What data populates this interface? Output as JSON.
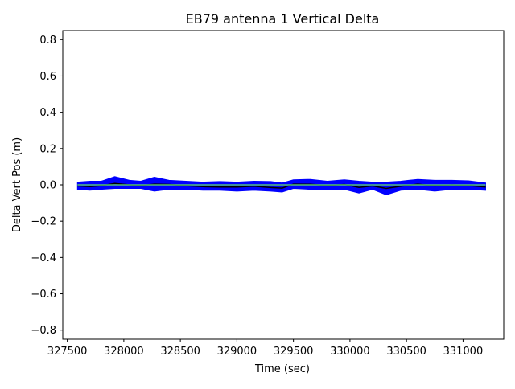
{
  "chart_data": {
    "type": "line",
    "title": "EB79 antenna 1 Vertical Delta",
    "xlabel": "Time (sec)",
    "ylabel": "Delta Vert Pos (m)",
    "xlim": [
      327460,
      331360
    ],
    "ylim": [
      -0.85,
      0.85
    ],
    "x_ticks": [
      {
        "value": 327500,
        "label": "327500"
      },
      {
        "value": 328000,
        "label": "328000"
      },
      {
        "value": 328500,
        "label": "328500"
      },
      {
        "value": 329000,
        "label": "329000"
      },
      {
        "value": 329500,
        "label": "329500"
      },
      {
        "value": 330000,
        "label": "330000"
      },
      {
        "value": 330500,
        "label": "330500"
      },
      {
        "value": 331000,
        "label": "331000"
      }
    ],
    "y_ticks": [
      {
        "value": 0.8,
        "label": "0.8"
      },
      {
        "value": 0.6,
        "label": "0.6"
      },
      {
        "value": 0.4,
        "label": "0.4"
      },
      {
        "value": 0.2,
        "label": "0.2"
      },
      {
        "value": 0.0,
        "label": "0.0"
      },
      {
        "value": -0.2,
        "label": "−0.2"
      },
      {
        "value": -0.4,
        "label": "−0.4"
      },
      {
        "value": -0.6,
        "label": "−0.6"
      },
      {
        "value": -0.8,
        "label": "−0.8"
      }
    ],
    "grid": false,
    "series": [
      {
        "color": "#0000ff",
        "style": "error-band",
        "x": [
          327590,
          327700,
          327800,
          327920,
          328050,
          328150,
          328270,
          328400,
          328550,
          328700,
          328850,
          329000,
          329150,
          329300,
          329400,
          329500,
          329650,
          329800,
          329950,
          330080,
          330200,
          330320,
          330450,
          330600,
          330750,
          330900,
          331050,
          331200
        ],
        "upper": [
          0.015,
          0.02,
          0.02,
          0.045,
          0.025,
          0.02,
          0.042,
          0.025,
          0.02,
          0.015,
          0.018,
          0.015,
          0.02,
          0.018,
          0.01,
          0.028,
          0.03,
          0.02,
          0.028,
          0.02,
          0.015,
          0.015,
          0.02,
          0.03,
          0.025,
          0.025,
          0.022,
          0.01
        ],
        "lower": [
          -0.025,
          -0.03,
          -0.025,
          -0.02,
          -0.02,
          -0.02,
          -0.035,
          -0.025,
          -0.025,
          -0.03,
          -0.03,
          -0.035,
          -0.03,
          -0.035,
          -0.04,
          -0.02,
          -0.025,
          -0.025,
          -0.025,
          -0.045,
          -0.025,
          -0.055,
          -0.03,
          -0.025,
          -0.035,
          -0.025,
          -0.025,
          -0.03
        ]
      },
      {
        "color": "#000000",
        "style": "line",
        "x": [
          327590,
          327700,
          327800,
          327920,
          328050,
          328150,
          328270,
          328400,
          328550,
          328700,
          328850,
          329000,
          329150,
          329300,
          329400,
          329500,
          329650,
          329800,
          329950,
          330080,
          330200,
          330320,
          330450,
          330600,
          330750,
          330900,
          331050,
          331200
        ],
        "values": [
          -0.006,
          -0.01,
          -0.005,
          0.008,
          0.0,
          -0.004,
          0.004,
          0.002,
          -0.005,
          -0.01,
          -0.012,
          -0.012,
          -0.008,
          -0.015,
          -0.018,
          0.004,
          0.003,
          -0.004,
          0.002,
          -0.014,
          -0.006,
          -0.02,
          -0.008,
          0.004,
          -0.006,
          0.0,
          -0.004,
          -0.012
        ]
      },
      {
        "color": "#55c07a",
        "style": "line",
        "x": [
          327590,
          331200
        ],
        "values": [
          0.0,
          0.0
        ]
      }
    ]
  }
}
